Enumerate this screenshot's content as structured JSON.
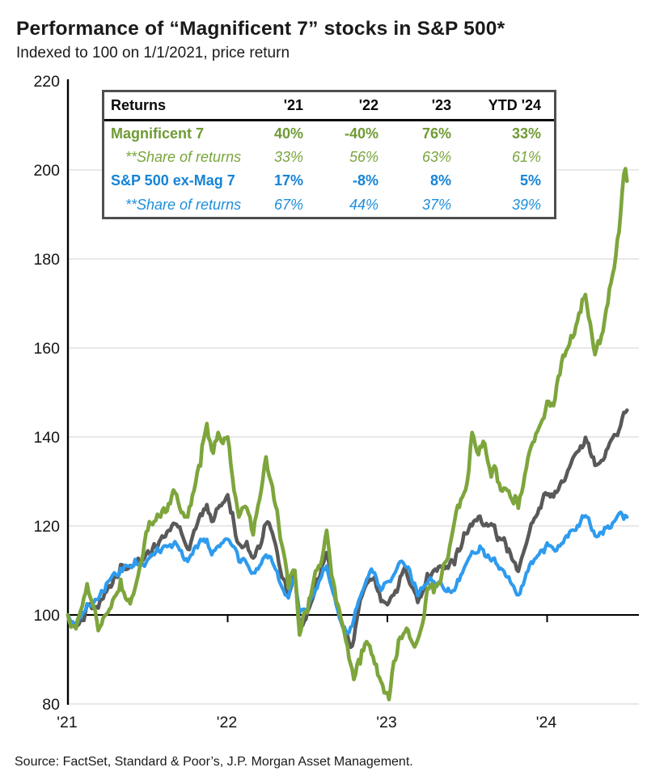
{
  "header": {
    "title": "Performance of “Magnificent 7” stocks in S&P 500*",
    "subtitle": "Indexed to 100 on 1/1/2021, price return"
  },
  "footer": {
    "source": "Source: FactSet, Standard & Poor’s, J.P. Morgan Asset Management."
  },
  "returns_table": {
    "header": [
      "Returns",
      "'21",
      "'22",
      "'23",
      "YTD '24"
    ],
    "rows": [
      {
        "label": "Magnificent 7",
        "values": [
          "40%",
          "-40%",
          "76%",
          "33%"
        ]
      },
      {
        "label": "**Share of returns",
        "values": [
          "33%",
          "56%",
          "63%",
          "61%"
        ]
      },
      {
        "label": "S&P 500 ex-Mag 7",
        "values": [
          "17%",
          "-8%",
          "8%",
          "5%"
        ]
      },
      {
        "label": "**Share of returns",
        "values": [
          "67%",
          "44%",
          "37%",
          "39%"
        ]
      }
    ]
  },
  "chart_data": {
    "type": "line",
    "title": "Performance of “Magnificent 7” stocks in S&P 500*",
    "subtitle": "Indexed to 100 on 1/1/2021, price return",
    "source": "Source: FactSet, Standard & Poor’s, J.P. Morgan Asset Management.",
    "index_base": 100,
    "x_axis": {
      "unit": "decimal_year",
      "range": [
        2021.0,
        2024.5
      ],
      "ticks": [
        {
          "t": 2021,
          "label": "'21"
        },
        {
          "t": 2022,
          "label": "'22"
        },
        {
          "t": 2023,
          "label": "'23"
        },
        {
          "t": 2024,
          "label": "'24"
        }
      ]
    },
    "y_axis": {
      "range": [
        80,
        220
      ],
      "baseline": 100,
      "ticks": [
        220,
        200,
        180,
        160,
        140,
        120,
        100,
        80
      ],
      "grid": true
    },
    "series": [
      {
        "name": "Magnificent 7",
        "color": "#7DA53C",
        "points": [
          [
            2021.0,
            100
          ],
          [
            2021.03,
            97.5
          ],
          [
            2021.08,
            101
          ],
          [
            2021.12,
            107
          ],
          [
            2021.15,
            103
          ],
          [
            2021.19,
            96.5
          ],
          [
            2021.25,
            100.5
          ],
          [
            2021.29,
            104
          ],
          [
            2021.33,
            108
          ],
          [
            2021.38,
            103.5
          ],
          [
            2021.42,
            106
          ],
          [
            2021.46,
            112
          ],
          [
            2021.5,
            119
          ],
          [
            2021.54,
            121
          ],
          [
            2021.58,
            122
          ],
          [
            2021.63,
            125
          ],
          [
            2021.67,
            127.5
          ],
          [
            2021.71,
            123
          ],
          [
            2021.75,
            122
          ],
          [
            2021.79,
            128
          ],
          [
            2021.83,
            133.5
          ],
          [
            2021.87,
            143
          ],
          [
            2021.9,
            137
          ],
          [
            2021.94,
            141
          ],
          [
            2022.0,
            140
          ],
          [
            2022.03,
            131
          ],
          [
            2022.07,
            122
          ],
          [
            2022.12,
            124
          ],
          [
            2022.16,
            118
          ],
          [
            2022.21,
            128
          ],
          [
            2022.24,
            135.5
          ],
          [
            2022.29,
            126
          ],
          [
            2022.33,
            117
          ],
          [
            2022.38,
            106
          ],
          [
            2022.42,
            110
          ],
          [
            2022.45,
            95.5
          ],
          [
            2022.5,
            100.5
          ],
          [
            2022.54,
            108
          ],
          [
            2022.58,
            111
          ],
          [
            2022.62,
            119
          ],
          [
            2022.67,
            106
          ],
          [
            2022.71,
            99
          ],
          [
            2022.75,
            93
          ],
          [
            2022.79,
            85.5
          ],
          [
            2022.83,
            89
          ],
          [
            2022.87,
            94
          ],
          [
            2022.92,
            89
          ],
          [
            2022.96,
            85
          ],
          [
            2023.01,
            81
          ],
          [
            2023.06,
            91
          ],
          [
            2023.08,
            95
          ],
          [
            2023.12,
            97
          ],
          [
            2023.16,
            93.5
          ],
          [
            2023.2,
            95.5
          ],
          [
            2023.25,
            106
          ],
          [
            2023.29,
            105
          ],
          [
            2023.33,
            107
          ],
          [
            2023.38,
            113
          ],
          [
            2023.42,
            121
          ],
          [
            2023.46,
            126
          ],
          [
            2023.5,
            130
          ],
          [
            2023.53,
            141
          ],
          [
            2023.57,
            136
          ],
          [
            2023.6,
            139
          ],
          [
            2023.65,
            131
          ],
          [
            2023.67,
            133.5
          ],
          [
            2023.71,
            128
          ],
          [
            2023.75,
            128
          ],
          [
            2023.79,
            125
          ],
          [
            2023.82,
            124
          ],
          [
            2023.87,
            133
          ],
          [
            2023.92,
            139
          ],
          [
            2023.96,
            143
          ],
          [
            2024.0,
            148
          ],
          [
            2024.04,
            147
          ],
          [
            2024.08,
            154
          ],
          [
            2024.13,
            160
          ],
          [
            2024.17,
            163
          ],
          [
            2024.21,
            168
          ],
          [
            2024.24,
            172
          ],
          [
            2024.28,
            163
          ],
          [
            2024.3,
            158.5
          ],
          [
            2024.33,
            161
          ],
          [
            2024.38,
            170
          ],
          [
            2024.42,
            178
          ],
          [
            2024.45,
            186
          ],
          [
            2024.48,
            199
          ],
          [
            2024.5,
            197.5
          ]
        ]
      },
      {
        "name": "S&P 500",
        "color": "#595959",
        "points": [
          [
            2021.0,
            100
          ],
          [
            2021.03,
            98
          ],
          [
            2021.08,
            99
          ],
          [
            2021.12,
            102.5
          ],
          [
            2021.17,
            101.5
          ],
          [
            2021.21,
            103.5
          ],
          [
            2021.25,
            106
          ],
          [
            2021.29,
            109
          ],
          [
            2021.33,
            111.3
          ],
          [
            2021.38,
            110.5
          ],
          [
            2021.42,
            112
          ],
          [
            2021.46,
            112.3
          ],
          [
            2021.5,
            114.4
          ],
          [
            2021.54,
            116
          ],
          [
            2021.58,
            117
          ],
          [
            2021.63,
            119
          ],
          [
            2021.67,
            120.5
          ],
          [
            2021.71,
            118.5
          ],
          [
            2021.75,
            114.8
          ],
          [
            2021.79,
            119
          ],
          [
            2021.83,
            122.7
          ],
          [
            2021.87,
            124.8
          ],
          [
            2021.9,
            121
          ],
          [
            2021.94,
            124
          ],
          [
            2022.0,
            127
          ],
          [
            2022.03,
            123
          ],
          [
            2022.07,
            116
          ],
          [
            2022.12,
            116.5
          ],
          [
            2022.16,
            112.8
          ],
          [
            2022.21,
            116
          ],
          [
            2022.24,
            120.5
          ],
          [
            2022.29,
            117
          ],
          [
            2022.33,
            110
          ],
          [
            2022.38,
            104
          ],
          [
            2022.42,
            110
          ],
          [
            2022.45,
            97.8
          ],
          [
            2022.5,
            100.8
          ],
          [
            2022.54,
            104.5
          ],
          [
            2022.58,
            109
          ],
          [
            2022.62,
            114
          ],
          [
            2022.67,
            105.3
          ],
          [
            2022.71,
            98.5
          ],
          [
            2022.75,
            95.5
          ],
          [
            2022.78,
            93
          ],
          [
            2022.83,
            103.3
          ],
          [
            2022.87,
            107
          ],
          [
            2022.92,
            108.5
          ],
          [
            2022.96,
            103
          ],
          [
            2023.0,
            102.3
          ],
          [
            2023.04,
            104.5
          ],
          [
            2023.08,
            108.6
          ],
          [
            2023.11,
            110.8
          ],
          [
            2023.16,
            106
          ],
          [
            2023.19,
            102.8
          ],
          [
            2023.25,
            109.3
          ],
          [
            2023.29,
            110
          ],
          [
            2023.33,
            111
          ],
          [
            2023.38,
            110.5
          ],
          [
            2023.42,
            111.3
          ],
          [
            2023.46,
            115
          ],
          [
            2023.5,
            118.3
          ],
          [
            2023.54,
            121
          ],
          [
            2023.58,
            122.2
          ],
          [
            2023.63,
            120
          ],
          [
            2023.67,
            120.2
          ],
          [
            2023.71,
            117
          ],
          [
            2023.75,
            114.2
          ],
          [
            2023.79,
            112
          ],
          [
            2023.82,
            109.8
          ],
          [
            2023.87,
            116
          ],
          [
            2023.92,
            121.7
          ],
          [
            2023.96,
            124
          ],
          [
            2024.0,
            127
          ],
          [
            2024.04,
            126.5
          ],
          [
            2024.08,
            129.2
          ],
          [
            2024.13,
            132.5
          ],
          [
            2024.17,
            135.8
          ],
          [
            2024.21,
            138
          ],
          [
            2024.24,
            139.9
          ],
          [
            2024.28,
            135.5
          ],
          [
            2024.3,
            133.6
          ],
          [
            2024.33,
            134.2
          ],
          [
            2024.38,
            137.5
          ],
          [
            2024.42,
            140.5
          ],
          [
            2024.45,
            141.5
          ],
          [
            2024.48,
            145.5
          ],
          [
            2024.5,
            146
          ]
        ]
      },
      {
        "name": "S&P 500 ex-Mag 7",
        "color": "#2E9BEE",
        "points": [
          [
            2021.0,
            100
          ],
          [
            2021.03,
            98.5
          ],
          [
            2021.08,
            99.5
          ],
          [
            2021.12,
            102.5
          ],
          [
            2021.17,
            103.5
          ],
          [
            2021.21,
            105.5
          ],
          [
            2021.25,
            107.5
          ],
          [
            2021.29,
            109.5
          ],
          [
            2021.33,
            110.5
          ],
          [
            2021.38,
            111
          ],
          [
            2021.42,
            112.5
          ],
          [
            2021.46,
            112
          ],
          [
            2021.5,
            112.5
          ],
          [
            2021.54,
            113.5
          ],
          [
            2021.58,
            114
          ],
          [
            2021.63,
            115.5
          ],
          [
            2021.67,
            116.5
          ],
          [
            2021.71,
            114.5
          ],
          [
            2021.75,
            112
          ],
          [
            2021.79,
            115
          ],
          [
            2021.83,
            117
          ],
          [
            2021.87,
            117
          ],
          [
            2021.9,
            113.5
          ],
          [
            2021.94,
            115.5
          ],
          [
            2022.0,
            117
          ],
          [
            2022.03,
            115.5
          ],
          [
            2022.07,
            112
          ],
          [
            2022.12,
            111.5
          ],
          [
            2022.16,
            109.5
          ],
          [
            2022.21,
            111.5
          ],
          [
            2022.24,
            113.5
          ],
          [
            2022.29,
            111
          ],
          [
            2022.33,
            107
          ],
          [
            2022.38,
            103.8
          ],
          [
            2022.42,
            108.5
          ],
          [
            2022.45,
            100.5
          ],
          [
            2022.5,
            101
          ],
          [
            2022.54,
            104.5
          ],
          [
            2022.58,
            108
          ],
          [
            2022.62,
            111
          ],
          [
            2022.67,
            104
          ],
          [
            2022.71,
            98.5
          ],
          [
            2022.75,
            95.8
          ],
          [
            2022.78,
            97.5
          ],
          [
            2022.83,
            104
          ],
          [
            2022.87,
            108
          ],
          [
            2022.92,
            109.5
          ],
          [
            2022.96,
            105.5
          ],
          [
            2023.0,
            107.5
          ],
          [
            2023.04,
            109
          ],
          [
            2023.08,
            112
          ],
          [
            2023.11,
            111
          ],
          [
            2023.16,
            107
          ],
          [
            2023.19,
            104.3
          ],
          [
            2023.25,
            107
          ],
          [
            2023.29,
            107.5
          ],
          [
            2023.33,
            107.5
          ],
          [
            2023.38,
            106
          ],
          [
            2023.42,
            105.5
          ],
          [
            2023.46,
            109
          ],
          [
            2023.5,
            112
          ],
          [
            2023.54,
            114
          ],
          [
            2023.58,
            115.5
          ],
          [
            2023.63,
            113.5
          ],
          [
            2023.67,
            112.8
          ],
          [
            2023.71,
            110.5
          ],
          [
            2023.75,
            108.5
          ],
          [
            2023.79,
            106.5
          ],
          [
            2023.82,
            104.5
          ],
          [
            2023.87,
            109.5
          ],
          [
            2023.92,
            112.5
          ],
          [
            2023.96,
            114.5
          ],
          [
            2024.0,
            116.2
          ],
          [
            2024.04,
            114.8
          ],
          [
            2024.08,
            115.5
          ],
          [
            2024.13,
            117.5
          ],
          [
            2024.17,
            119
          ],
          [
            2024.21,
            121
          ],
          [
            2024.24,
            122.3
          ],
          [
            2024.28,
            119
          ],
          [
            2024.3,
            117.8
          ],
          [
            2024.33,
            118.5
          ],
          [
            2024.38,
            120
          ],
          [
            2024.42,
            121
          ],
          [
            2024.45,
            122.8
          ],
          [
            2024.48,
            121.5
          ],
          [
            2024.5,
            122
          ]
        ]
      }
    ]
  }
}
